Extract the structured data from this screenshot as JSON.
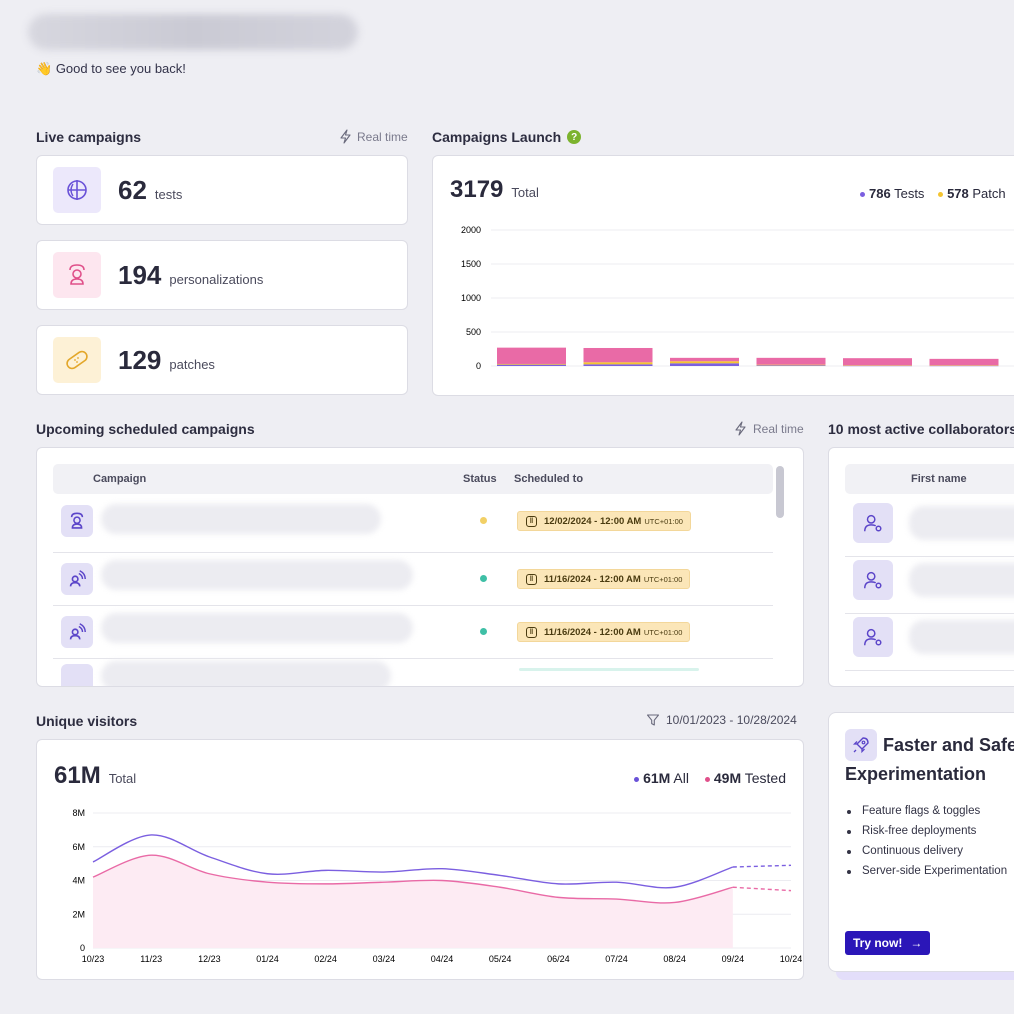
{
  "greeting": {
    "emoji": "👋",
    "text": "Good to see you back!"
  },
  "live": {
    "title": "Live campaigns",
    "realtime": "Real time",
    "stats": [
      {
        "value": "62",
        "unit": "tests",
        "icon": "tests-icon",
        "bg": "#ece8fb",
        "color": "#6a52d8"
      },
      {
        "value": "194",
        "unit": "personalizations",
        "icon": "personalization-icon",
        "bg": "#fde6ef",
        "color": "#e0508a"
      },
      {
        "value": "129",
        "unit": "patches",
        "icon": "patch-icon",
        "bg": "#fdf1d6",
        "color": "#e3a72a"
      }
    ]
  },
  "launch": {
    "title": "Campaigns Launch",
    "help_icon": "question-icon",
    "total_value": "3179",
    "total_label": "Total",
    "legend": [
      {
        "value": "786",
        "label": "Tests",
        "color": "#7b5fe0"
      },
      {
        "value": "578",
        "label": "Patch",
        "color": "#f4c430"
      }
    ]
  },
  "upcoming": {
    "title": "Upcoming scheduled campaigns",
    "realtime": "Real time",
    "columns": [
      "Campaign",
      "Status",
      "Scheduled to"
    ],
    "rows": [
      {
        "status_color": "#f2d066",
        "date": "12/02/2024 - 12:00 AM",
        "tz": "UTC+01:00"
      },
      {
        "status_color": "#3fbfa6",
        "date": "11/16/2024 - 12:00 AM",
        "tz": "UTC+01:00"
      },
      {
        "status_color": "#3fbfa6",
        "date": "11/16/2024 - 12:00 AM",
        "tz": "UTC+01:00"
      }
    ]
  },
  "collaborators": {
    "title": "10 most active collaborators",
    "column": "First name"
  },
  "visitors": {
    "title": "Unique visitors",
    "date_range": "10/01/2023 - 10/28/2024",
    "total_value": "61M",
    "total_label": "Total",
    "legend": [
      {
        "value": "61M",
        "label": "All",
        "color": "#6a52d8"
      },
      {
        "value": "49M",
        "label": "Tested",
        "color": "#e0508a"
      }
    ]
  },
  "promo": {
    "title_line1": "Faster and Safer",
    "title_line2": "Experimentation",
    "bullets": [
      "Feature flags & toggles",
      "Risk-free deployments",
      "Continuous delivery",
      "Server-side Experimentation"
    ],
    "cta": "Try now!",
    "cta_arrow": "→"
  },
  "chart_data": [
    {
      "type": "bar",
      "title": "Campaigns Launch",
      "ylim": [
        0,
        2000
      ],
      "yticks": [
        "2000",
        "1500",
        "1000",
        "500",
        "0"
      ],
      "series": [
        {
          "name": "Tests",
          "color": "#7b5fe0",
          "values": [
            20,
            25,
            40,
            10,
            5,
            5
          ]
        },
        {
          "name": "Patch",
          "color": "#f4c430",
          "values": [
            10,
            30,
            30,
            10,
            5,
            5
          ]
        },
        {
          "color": "#e96aa6",
          "values": [
            240,
            210,
            50,
            100,
            105,
            95
          ]
        }
      ]
    },
    {
      "type": "area",
      "title": "Unique visitors",
      "ylim": [
        0,
        8
      ],
      "yticks": [
        "8M",
        "6M",
        "4M",
        "2M",
        "0"
      ],
      "categories": [
        "10/23",
        "11/23",
        "12/23",
        "01/24",
        "02/24",
        "03/24",
        "04/24",
        "05/24",
        "06/24",
        "07/24",
        "08/24",
        "09/24",
        "10/24"
      ],
      "series": [
        {
          "name": "All",
          "color": "#7b5fe0",
          "values": [
            5.1,
            6.7,
            5.4,
            4.4,
            4.6,
            4.5,
            4.7,
            4.3,
            3.8,
            3.9,
            3.6,
            4.8,
            4.9
          ]
        },
        {
          "name": "Tested",
          "color": "#e96aa6",
          "values": [
            4.2,
            5.5,
            4.4,
            3.9,
            3.8,
            3.9,
            4.0,
            3.6,
            3.0,
            2.9,
            2.7,
            3.6,
            3.4
          ]
        }
      ]
    }
  ]
}
